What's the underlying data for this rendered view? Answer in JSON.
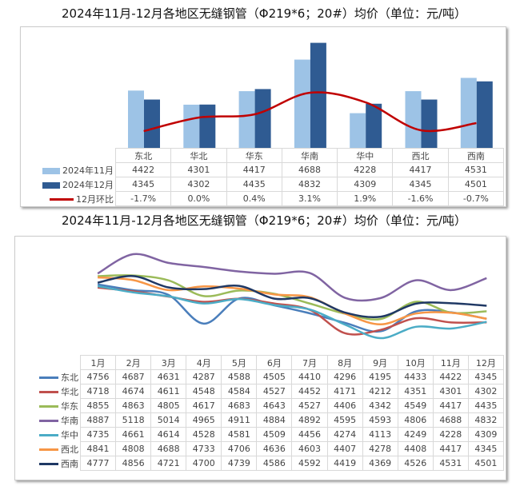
{
  "chart_data": [
    {
      "type": "bar+line",
      "title": "2024年11月-12月各地区无缝钢管（Φ219*6；20#）均价（单位：元/吨）",
      "categories": [
        "东北",
        "华北",
        "华东",
        "华南",
        "华中",
        "西北",
        "西南"
      ],
      "series": [
        {
          "name": "2024年11月",
          "kind": "bar",
          "color": "#9DC3E6",
          "values": [
            4422,
            4301,
            4417,
            4688,
            4228,
            4417,
            4531
          ]
        },
        {
          "name": "2024年12月",
          "kind": "bar",
          "color": "#2F5B92",
          "values": [
            4345,
            4302,
            4435,
            4832,
            4309,
            4345,
            4501
          ]
        },
        {
          "name": "12月环比",
          "kind": "line",
          "color": "#C00000",
          "values": [
            -1.7,
            0.0,
            0.4,
            3.1,
            1.9,
            -1.6,
            -0.7
          ],
          "labels": [
            "-1.7%",
            "0.0%",
            "0.4%",
            "3.1%",
            "1.9%",
            "-1.6%",
            "-0.7%"
          ]
        }
      ]
    },
    {
      "type": "line",
      "title": "2024年11月-12月各地区无缝钢管（Φ219*6；20#）均价（单位：元/吨）",
      "categories": [
        "1月",
        "2月",
        "3月",
        "4月",
        "5月",
        "6月",
        "7月",
        "8月",
        "9月",
        "10月",
        "11月",
        "12月"
      ],
      "series": [
        {
          "name": "东北",
          "color": "#4A7EBB",
          "values": [
            4756,
            4687,
            4631,
            4287,
            4588,
            4505,
            4410,
            4296,
            4195,
            4433,
            4422,
            4345
          ]
        },
        {
          "name": "华北",
          "color": "#C0504D",
          "values": [
            4718,
            4674,
            4611,
            4548,
            4584,
            4527,
            4452,
            4171,
            4212,
            4351,
            4301,
            4302
          ]
        },
        {
          "name": "华东",
          "color": "#9BBB59",
          "values": [
            4855,
            4863,
            4805,
            4617,
            4683,
            4643,
            4527,
            4406,
            4342,
            4549,
            4417,
            4435
          ]
        },
        {
          "name": "华南",
          "color": "#8064A2",
          "values": [
            4887,
            5118,
            5014,
            4965,
            4911,
            4884,
            4892,
            4595,
            4593,
            4806,
            4688,
            4832
          ]
        },
        {
          "name": "华中",
          "color": "#4BACC6",
          "values": [
            4735,
            4661,
            4614,
            4528,
            4581,
            4509,
            4456,
            4274,
            4113,
            4249,
            4228,
            4309
          ]
        },
        {
          "name": "西北",
          "color": "#F79646",
          "values": [
            4841,
            4808,
            4688,
            4733,
            4706,
            4636,
            4603,
            4407,
            4278,
            4408,
            4417,
            4345
          ]
        },
        {
          "name": "西南",
          "color": "#1F3864",
          "values": [
            4777,
            4856,
            4721,
            4700,
            4739,
            4586,
            4592,
            4419,
            4369,
            4526,
            4531,
            4501
          ]
        }
      ]
    }
  ]
}
